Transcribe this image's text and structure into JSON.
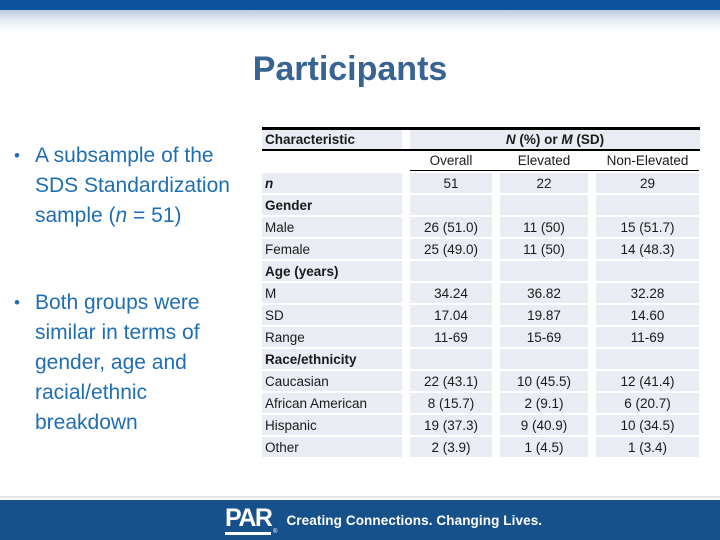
{
  "slide": {
    "title": "Participants"
  },
  "colors": {
    "top_bar": "#0C539E",
    "title_text": "#386392",
    "bullet_text": "#1F6EB4",
    "table_row_fill": "#E9EDF3",
    "table_border": "#000000",
    "bottom_bar": "#17518B",
    "footer_text": "#FFFFFF"
  },
  "bullets": {
    "marker": "•",
    "b1": {
      "lines": [
        "A subsample of the",
        "SDS Standardization"
      ],
      "line3": {
        "pre": "sample (",
        "it": "n",
        "post": " = 51)"
      }
    },
    "b2": {
      "lines": [
        "Both groups were",
        "similar in terms of",
        "gender, age and",
        "racial/ethnic",
        "breakdown"
      ]
    }
  },
  "table": {
    "header": {
      "characteristic": "Characteristic",
      "span": {
        "n": "N",
        "mid": " (%) or ",
        "m": "M",
        "end": " (SD)"
      },
      "columns": [
        "Overall",
        "Elevated",
        "Non-Elevated"
      ]
    },
    "rows": [
      {
        "label": "n",
        "values": [
          "51",
          "22",
          "29"
        ]
      },
      {
        "label": "Gender",
        "values": [
          "",
          "",
          ""
        ]
      },
      {
        "label": "Male",
        "values": [
          "26 (51.0)",
          "11 (50)",
          "15 (51.7)"
        ]
      },
      {
        "label": "Female",
        "values": [
          "25 (49.0)",
          "11 (50)",
          "14 (48.3)"
        ]
      },
      {
        "label": "Age (years)",
        "values": [
          "",
          "",
          ""
        ]
      },
      {
        "label": "M",
        "values": [
          "34.24",
          "36.82",
          "32.28"
        ]
      },
      {
        "label": "SD",
        "values": [
          "17.04",
          "19.87",
          "14.60"
        ]
      },
      {
        "label": "Range",
        "values": [
          "11-69",
          "15-69",
          "11-69"
        ]
      },
      {
        "label": "Race/ethnicity",
        "values": [
          "",
          "",
          ""
        ]
      },
      {
        "label": "Caucasian",
        "values": [
          "22 (43.1)",
          "10 (45.5)",
          "12 (41.4)"
        ]
      },
      {
        "label": "African American",
        "values": [
          "8 (15.7)",
          "2 (9.1)",
          "6 (20.7)"
        ]
      },
      {
        "label": "Hispanic",
        "values": [
          "19 (37.3)",
          "9 (40.9)",
          "10 (34.5)"
        ]
      },
      {
        "label": "Other",
        "values": [
          "2 (3.9)",
          "1 (4.5)",
          "1 (3.4)"
        ]
      }
    ]
  },
  "footer": {
    "logo": "PAR",
    "reg": "®",
    "tagline": "Creating Connections. Changing Lives."
  }
}
